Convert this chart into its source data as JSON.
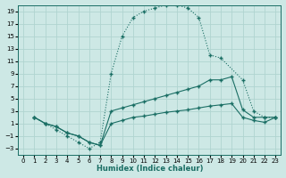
{
  "xlabel": "Humidex (Indice chaleur)",
  "background_color": "#cde8e5",
  "grid_color": "#b0d4d0",
  "line_color": "#1a6e64",
  "xlim": [
    -0.5,
    23.5
  ],
  "ylim": [
    -4,
    20
  ],
  "xticks": [
    0,
    1,
    2,
    3,
    4,
    5,
    6,
    7,
    8,
    9,
    10,
    11,
    12,
    13,
    14,
    15,
    16,
    17,
    18,
    19,
    20,
    21,
    22,
    23
  ],
  "yticks": [
    -3,
    -1,
    1,
    3,
    5,
    7,
    9,
    11,
    13,
    15,
    17,
    19
  ],
  "series1_x": [
    1,
    2,
    3,
    4,
    5,
    6,
    7,
    8,
    9,
    10,
    11,
    12,
    13,
    14,
    15,
    16,
    17,
    18,
    20,
    21,
    22,
    23
  ],
  "series1_y": [
    2,
    1,
    0,
    -1,
    -2,
    -3,
    -2,
    9,
    15,
    18,
    19,
    19.5,
    20,
    20,
    19.5,
    18,
    12,
    11.5,
    8,
    3,
    2,
    2
  ],
  "series2_x": [
    1,
    2,
    3,
    4,
    5,
    6,
    7,
    8,
    9,
    10,
    11,
    12,
    13,
    14,
    15,
    16,
    17,
    18,
    19,
    20,
    21,
    22,
    23
  ],
  "series2_y": [
    2,
    1,
    0.5,
    -0.5,
    -1,
    -2,
    -2.5,
    3,
    3.5,
    4,
    4.5,
    5,
    5.5,
    6,
    6.5,
    7,
    8,
    8,
    8.5,
    3.2,
    2,
    2,
    2
  ],
  "series3_x": [
    1,
    2,
    3,
    4,
    5,
    6,
    7,
    8,
    9,
    10,
    11,
    12,
    13,
    14,
    15,
    16,
    17,
    18,
    19,
    20,
    21,
    22,
    23
  ],
  "series3_y": [
    2,
    1,
    0.5,
    -0.5,
    -1,
    -2,
    -2.5,
    1,
    1.5,
    2,
    2.2,
    2.5,
    2.8,
    3,
    3.2,
    3.5,
    3.8,
    4,
    4.2,
    2,
    1.5,
    1.2,
    2
  ]
}
